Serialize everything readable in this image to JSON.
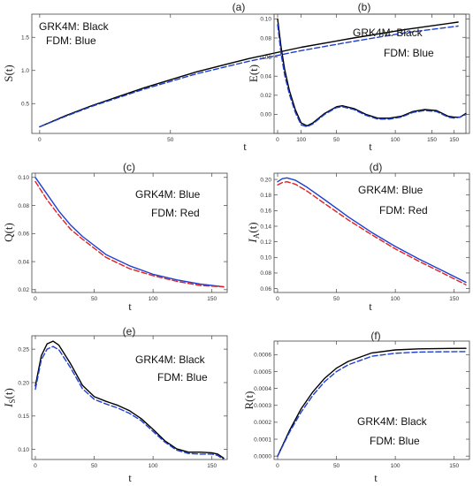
{
  "chart_data": [
    {
      "panel": "(a)",
      "type": "line",
      "xlabel": "t",
      "ylabel": "S(t)",
      "xlim": [
        -3,
        163
      ],
      "ylim": [
        0.05,
        1.85
      ],
      "xticks": [
        0,
        50,
        100,
        150
      ],
      "yticks": [
        0.5,
        1.0,
        1.5
      ],
      "ytick_labels": [
        "0.5",
        "1.0",
        "1.5"
      ],
      "legend": [
        "GRK4M: Black",
        "FDM:  Blue"
      ],
      "legend_position": "top-left",
      "series": [
        {
          "color": "#000000",
          "style": "solid",
          "x": [
            0,
            10,
            20,
            40,
            60,
            80,
            100,
            120,
            140,
            160
          ],
          "y": [
            0.15,
            0.32,
            0.47,
            0.74,
            0.98,
            1.18,
            1.35,
            1.49,
            1.62,
            1.73
          ]
        },
        {
          "color": "#1f3fd1",
          "style": "dashed",
          "x": [
            0,
            10,
            20,
            40,
            60,
            80,
            100,
            120,
            140,
            160
          ],
          "y": [
            0.15,
            0.31,
            0.46,
            0.72,
            0.95,
            1.14,
            1.3,
            1.44,
            1.57,
            1.67
          ]
        }
      ]
    },
    {
      "panel": "(b)",
      "type": "line",
      "xlabel": "t",
      "ylabel": "E(t)",
      "xlim": [
        -3,
        163
      ],
      "ylim": [
        -0.02,
        0.105
      ],
      "xticks": [
        0,
        50,
        100,
        150
      ],
      "yticks": [
        0.0,
        0.02,
        0.04,
        0.06,
        0.08,
        0.1
      ],
      "ytick_labels": [
        "0.00",
        "0.02",
        "0.04",
        "0.06",
        "0.08",
        "0.10"
      ],
      "legend": [
        "GRK4M: Black",
        "FDM:  Blue"
      ],
      "legend_position": "top-right",
      "series": [
        {
          "color": "#000000",
          "style": "solid",
          "x": [
            0,
            3,
            6,
            10,
            15,
            20,
            25,
            30,
            40,
            50,
            55,
            65,
            75,
            85,
            95,
            105,
            115,
            125,
            135,
            145,
            150,
            155,
            160
          ],
          "y": [
            0.1,
            0.07,
            0.047,
            0.025,
            0.005,
            -0.009,
            -0.012,
            -0.009,
            0.001,
            0.008,
            0.009,
            0.006,
            0.0,
            -0.004,
            -0.004,
            -0.002,
            0.003,
            0.005,
            0.004,
            -0.002,
            -0.003,
            -0.003,
            0.001
          ]
        },
        {
          "color": "#1f3fd1",
          "style": "dashed",
          "x": [
            0,
            3,
            6,
            10,
            15,
            20,
            25,
            30,
            40,
            50,
            55,
            65,
            75,
            85,
            95,
            105,
            115,
            125,
            135,
            145,
            150,
            155,
            160
          ],
          "y": [
            0.094,
            0.063,
            0.041,
            0.021,
            0.002,
            -0.011,
            -0.013,
            -0.01,
            0.0,
            0.007,
            0.008,
            0.005,
            -0.001,
            -0.005,
            -0.005,
            -0.003,
            0.002,
            0.004,
            0.003,
            -0.003,
            -0.004,
            -0.003,
            0.0
          ]
        }
      ]
    },
    {
      "panel": "(c)",
      "type": "line",
      "xlabel": "t",
      "ylabel": "Q(t)",
      "xlim": [
        -3,
        163
      ],
      "ylim": [
        0.018,
        0.103
      ],
      "xticks": [
        0,
        50,
        100,
        150
      ],
      "yticks": [
        0.02,
        0.04,
        0.06,
        0.08,
        0.1
      ],
      "ytick_labels": [
        "0.02",
        "0.04",
        "0.06",
        "0.08",
        "0.10"
      ],
      "legend": [
        "GRK4M: Blue",
        "FDM: Red"
      ],
      "legend_position": "top-right",
      "series": [
        {
          "color": "#1f3fd1",
          "style": "solid",
          "x": [
            0,
            10,
            20,
            30,
            40,
            60,
            80,
            100,
            120,
            140,
            160
          ],
          "y": [
            0.1,
            0.088,
            0.076,
            0.066,
            0.058,
            0.045,
            0.037,
            0.031,
            0.027,
            0.024,
            0.022
          ]
        },
        {
          "color": "#e02020",
          "style": "dashed",
          "x": [
            0,
            10,
            20,
            30,
            40,
            60,
            80,
            100,
            120,
            140,
            160
          ],
          "y": [
            0.097,
            0.084,
            0.073,
            0.063,
            0.056,
            0.043,
            0.035,
            0.03,
            0.026,
            0.023,
            0.022
          ]
        }
      ]
    },
    {
      "panel": "(d)",
      "type": "line",
      "xlabel": "t",
      "ylabel": "I_A(t)",
      "xlim": [
        -3,
        163
      ],
      "ylim": [
        0.055,
        0.208
      ],
      "xticks": [
        0,
        50,
        100,
        150
      ],
      "yticks": [
        0.06,
        0.08,
        0.1,
        0.12,
        0.14,
        0.16,
        0.18,
        0.2
      ],
      "ytick_labels": [
        "0.06",
        "0.08",
        "0.10",
        "0.12",
        "0.14",
        "0.16",
        "0.18",
        "0.20"
      ],
      "legend": [
        "GRK4M: Blue",
        "FDM: Red"
      ],
      "legend_position": "top-right",
      "series": [
        {
          "color": "#1f3fd1",
          "style": "solid",
          "x": [
            0,
            4,
            8,
            15,
            25,
            40,
            60,
            80,
            100,
            120,
            140,
            160
          ],
          "y": [
            0.197,
            0.201,
            0.202,
            0.199,
            0.19,
            0.174,
            0.152,
            0.132,
            0.114,
            0.098,
            0.083,
            0.068
          ]
        },
        {
          "color": "#e02020",
          "style": "dashed",
          "x": [
            0,
            4,
            8,
            15,
            25,
            40,
            60,
            80,
            100,
            120,
            140,
            160
          ],
          "y": [
            0.193,
            0.196,
            0.197,
            0.194,
            0.185,
            0.169,
            0.148,
            0.129,
            0.111,
            0.095,
            0.08,
            0.065
          ]
        }
      ]
    },
    {
      "panel": "(e)",
      "type": "line",
      "xlabel": "t",
      "ylabel": "I_S(t)",
      "xlim": [
        -3,
        163
      ],
      "ylim": [
        0.085,
        0.27
      ],
      "xticks": [
        0,
        50,
        100,
        150
      ],
      "yticks": [
        0.1,
        0.15,
        0.2,
        0.25
      ],
      "ytick_labels": [
        "0.10",
        "0.15",
        "0.20",
        "0.25"
      ],
      "legend": [
        "GRK4M: Black",
        "FDM:  Blue"
      ],
      "legend_position": "top-right",
      "series": [
        {
          "color": "#000000",
          "style": "solid",
          "x": [
            0,
            5,
            10,
            15,
            20,
            30,
            40,
            50,
            60,
            70,
            80,
            90,
            100,
            110,
            120,
            130,
            140,
            150,
            155,
            160
          ],
          "y": [
            0.195,
            0.24,
            0.258,
            0.262,
            0.256,
            0.228,
            0.196,
            0.179,
            0.172,
            0.166,
            0.158,
            0.146,
            0.13,
            0.113,
            0.101,
            0.096,
            0.096,
            0.095,
            0.093,
            0.087
          ]
        },
        {
          "color": "#1f3fd1",
          "style": "dashed",
          "x": [
            0,
            5,
            10,
            15,
            20,
            30,
            40,
            50,
            60,
            70,
            80,
            90,
            100,
            110,
            120,
            130,
            140,
            150,
            155,
            160
          ],
          "y": [
            0.19,
            0.234,
            0.25,
            0.254,
            0.249,
            0.222,
            0.191,
            0.175,
            0.168,
            0.162,
            0.154,
            0.143,
            0.127,
            0.111,
            0.099,
            0.094,
            0.093,
            0.093,
            0.091,
            0.085
          ]
        }
      ]
    },
    {
      "panel": "(f)",
      "type": "line",
      "xlabel": "t",
      "ylabel": "R(t)",
      "xlim": [
        -3,
        163
      ],
      "ylim": [
        -2e-05,
        0.00068
      ],
      "xticks": [
        0,
        50,
        100,
        150
      ],
      "yticks": [
        0.0,
        0.0001,
        0.0002,
        0.0003,
        0.0004,
        0.0005,
        0.0006
      ],
      "ytick_labels": [
        "0.0000",
        "0.0001",
        "0.0002",
        "0.0003",
        "0.0004",
        "0.0005",
        "0.0006"
      ],
      "legend": [
        "GRK4M: Black",
        "FDM:  Blue"
      ],
      "legend_position": "bottom-right",
      "series": [
        {
          "color": "#000000",
          "style": "solid",
          "x": [
            0,
            10,
            20,
            30,
            40,
            50,
            60,
            80,
            100,
            120,
            140,
            160
          ],
          "y": [
            0.0,
            0.00015,
            0.00028,
            0.00038,
            0.00046,
            0.00052,
            0.00056,
            0.00061,
            0.000628,
            0.000634,
            0.000636,
            0.000637
          ]
        },
        {
          "color": "#1f3fd1",
          "style": "dashed",
          "x": [
            0,
            10,
            20,
            30,
            40,
            50,
            60,
            80,
            100,
            120,
            140,
            160
          ],
          "y": [
            0.0,
            0.00014,
            0.00026,
            0.00036,
            0.00044,
            0.0005,
            0.00054,
            0.00059,
            0.000608,
            0.000615,
            0.000617,
            0.000618
          ]
        }
      ]
    }
  ]
}
